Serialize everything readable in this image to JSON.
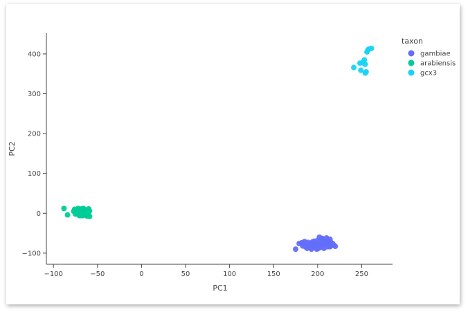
{
  "chart_data": {
    "type": "scatter",
    "title": "",
    "xlabel": "PC1",
    "ylabel": "PC2",
    "xlim": [
      -108,
      285
    ],
    "ylim": [
      -128,
      452
    ],
    "x_ticks": [
      -100,
      -50,
      0,
      50,
      100,
      150,
      200,
      250
    ],
    "x_tick_labels": [
      "−100",
      "−50",
      "0",
      "50",
      "100",
      "150",
      "200",
      "250"
    ],
    "y_ticks": [
      -100,
      0,
      100,
      200,
      300,
      400
    ],
    "y_tick_labels": [
      "−100",
      "0",
      "100",
      "200",
      "300",
      "400"
    ],
    "grid": false,
    "legend": {
      "title": "taxon",
      "position": "right"
    },
    "series": [
      {
        "name": "gambiae",
        "color": "#636efa",
        "points": [
          [
            175,
            -90
          ],
          [
            179,
            -76
          ],
          [
            182,
            -74
          ],
          [
            183,
            -82
          ],
          [
            185,
            -71
          ],
          [
            186,
            -84
          ],
          [
            187,
            -78
          ],
          [
            188,
            -88
          ],
          [
            189,
            -73
          ],
          [
            190,
            -80
          ],
          [
            191,
            -86
          ],
          [
            192,
            -76
          ],
          [
            193,
            -90
          ],
          [
            194,
            -72
          ],
          [
            195,
            -83
          ],
          [
            196,
            -79
          ],
          [
            197,
            -86
          ],
          [
            198,
            -74
          ],
          [
            199,
            -82
          ],
          [
            200,
            -68
          ],
          [
            201,
            -77
          ],
          [
            202,
            -60
          ],
          [
            203,
            -85
          ],
          [
            204,
            -72
          ],
          [
            205,
            -63
          ],
          [
            206,
            -80
          ],
          [
            207,
            -88
          ],
          [
            208,
            -70
          ],
          [
            209,
            -76
          ],
          [
            210,
            -62
          ],
          [
            211,
            -84
          ],
          [
            212,
            -69
          ],
          [
            213,
            -78
          ],
          [
            214,
            -65
          ],
          [
            215,
            -73
          ],
          [
            216,
            -81
          ],
          [
            217,
            -76
          ],
          [
            218,
            -79
          ],
          [
            220,
            -83
          ],
          [
            204,
            -78
          ],
          [
            196,
            -70
          ],
          [
            187,
            -82
          ],
          [
            211,
            -74
          ],
          [
            206,
            -66
          ],
          [
            199,
            -90
          ],
          [
            192,
            -84
          ],
          [
            214,
            -84
          ],
          [
            201,
            -88
          ]
        ]
      },
      {
        "name": "arabiensis",
        "color": "#00cc96",
        "points": [
          [
            -88,
            12
          ],
          [
            -84,
            -4
          ],
          [
            -77,
            5
          ],
          [
            -76,
            10
          ],
          [
            -75,
            -2
          ],
          [
            -74,
            7
          ],
          [
            -73,
            0
          ],
          [
            -72,
            12
          ],
          [
            -71,
            -5
          ],
          [
            -71,
            4
          ],
          [
            -70,
            9
          ],
          [
            -69,
            -3
          ],
          [
            -69,
            2
          ],
          [
            -68,
            11
          ],
          [
            -67,
            -6
          ],
          [
            -67,
            6
          ],
          [
            -66,
            1
          ],
          [
            -65,
            10
          ],
          [
            -65,
            -4
          ],
          [
            -64,
            5
          ],
          [
            -63,
            -1
          ],
          [
            -62,
            8
          ],
          [
            -62,
            -7
          ],
          [
            -61,
            3
          ],
          [
            -60,
            11
          ],
          [
            -60,
            -3
          ],
          [
            -59,
            6
          ],
          [
            -59,
            -8
          ],
          [
            -73,
            8
          ],
          [
            -70,
            -6
          ],
          [
            -66,
            12
          ],
          [
            -63,
            -5
          ],
          [
            -61,
            9
          ],
          [
            -68,
            0
          ],
          [
            -64,
            -2
          ]
        ]
      },
      {
        "name": "gcx3",
        "color": "#19d3f3",
        "points": [
          [
            241,
            366
          ],
          [
            248,
            377
          ],
          [
            249,
            359
          ],
          [
            251,
            378
          ],
          [
            253,
            385
          ],
          [
            254,
            352
          ],
          [
            254,
            374
          ],
          [
            255,
            355
          ],
          [
            256,
            405
          ],
          [
            257,
            410
          ],
          [
            258,
            412
          ],
          [
            261,
            414
          ]
        ]
      }
    ]
  }
}
